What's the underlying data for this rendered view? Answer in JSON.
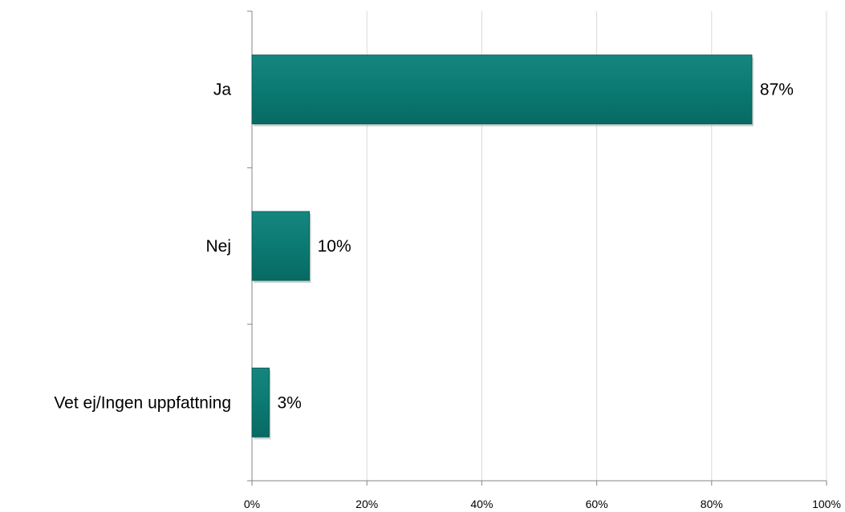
{
  "chart_data": {
    "type": "bar",
    "orientation": "horizontal",
    "categories": [
      "Ja",
      "Nej",
      "Vet ej/Ingen uppfattning"
    ],
    "values": [
      87,
      10,
      3
    ],
    "value_labels": [
      "87%",
      "10%",
      "3%"
    ],
    "x_ticks": [
      "0%",
      "20%",
      "40%",
      "60%",
      "80%",
      "100%"
    ],
    "xlim": [
      0,
      100
    ],
    "grid": "vertical",
    "bar_color": "#0e7b74",
    "title": "",
    "xlabel": "",
    "ylabel": ""
  }
}
